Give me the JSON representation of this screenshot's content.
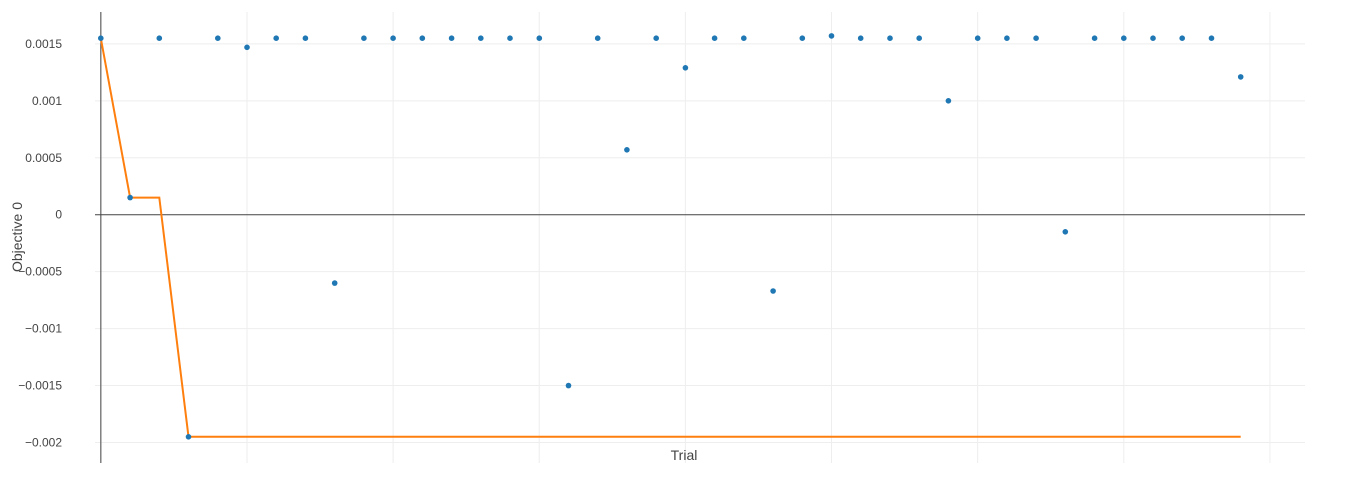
{
  "chart_data": {
    "type": "scatter",
    "title": "",
    "xlabel": "Trial",
    "ylabel": "Objective 0",
    "xlim": [
      -0.2,
      41.2
    ],
    "ylim": [
      -0.00218,
      0.00178
    ],
    "grid": true,
    "legend": "none",
    "yticks": [
      0.0015,
      0.001,
      0.0005,
      0,
      -0.0005,
      -0.001,
      -0.0015,
      -0.002
    ],
    "ytick_labels": [
      "0.0015",
      "0.001",
      "0.0005",
      "0",
      "−0.0005",
      "−0.001",
      "−0.0015",
      "−0.002"
    ],
    "x_gridlines": [
      0,
      5,
      10,
      15,
      20,
      25,
      30,
      35,
      40
    ],
    "series": [
      {
        "kind": "points",
        "color": "#1f77b4",
        "x": [
          0,
          1,
          2,
          3,
          4,
          5,
          6,
          7,
          8,
          9,
          10,
          11,
          12,
          13,
          14,
          15,
          16,
          17,
          18,
          19,
          20,
          21,
          22,
          23,
          24,
          25,
          26,
          27,
          28,
          29,
          30,
          31,
          32,
          33,
          34,
          35,
          36,
          37,
          38,
          39
        ],
        "y": [
          0.00155,
          0.00015,
          0.00155,
          -0.00195,
          0.00155,
          0.00147,
          0.00155,
          0.00155,
          -0.0006,
          0.00155,
          0.00155,
          0.00155,
          0.00155,
          0.00155,
          0.00155,
          0.00155,
          -0.0015,
          0.00155,
          0.00057,
          0.00155,
          0.00129,
          0.00155,
          0.00155,
          -0.00067,
          0.00155,
          0.00157,
          0.00155,
          0.00155,
          0.00155,
          0.001,
          0.00155,
          0.00155,
          0.00155,
          -0.00015,
          0.00155,
          0.00155,
          0.00155,
          0.00155,
          0.00155,
          0.00121
        ]
      },
      {
        "kind": "best-value-line",
        "color": "#ff7f0e",
        "x": [
          0,
          1,
          2,
          3,
          39
        ],
        "y": [
          0.00155,
          0.00015,
          0.00015,
          -0.00195,
          -0.00195
        ]
      }
    ]
  }
}
